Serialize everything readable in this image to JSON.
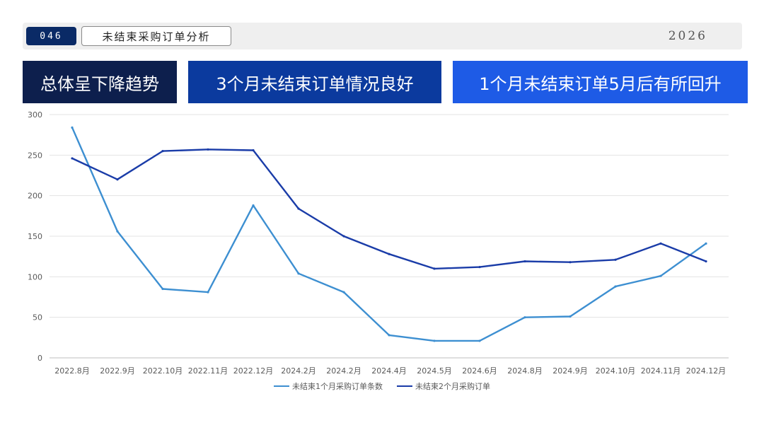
{
  "header": {
    "page_number": "046",
    "title": "未结束采购订单分析",
    "year": "2026"
  },
  "banners": [
    {
      "text": "总体呈下降趋势",
      "color": "#0d1f4d"
    },
    {
      "text": "3个月未结束订单情况良好",
      "color": "#0b3a9e"
    },
    {
      "text": "1个月未结束订单5月后有所回升",
      "color": "#1e5be6"
    }
  ],
  "chart_data": {
    "type": "line",
    "title": "",
    "xlabel": "",
    "ylabel": "",
    "ylim": [
      0,
      300
    ],
    "yticks": [
      0,
      50,
      100,
      150,
      200,
      250,
      300
    ],
    "grid": true,
    "legend_position": "bottom",
    "categories": [
      "2022.8月",
      "2022.9月",
      "2022.10月",
      "2022.11月",
      "2022.12月",
      "2024.2月",
      "2024.2月",
      "2024.4月",
      "2024.5月",
      "2024.6月",
      "2024.8月",
      "2024.9月",
      "2024.10月",
      "2024.11月",
      "2024.12月"
    ],
    "series": [
      {
        "name": "未结束1个月采购订单条数",
        "color": "#3d8fd1",
        "values": [
          284,
          156,
          85,
          81,
          188,
          104,
          81,
          28,
          21,
          21,
          50,
          51,
          88,
          101,
          141
        ]
      },
      {
        "name": "未结束2个月采购订单",
        "color": "#1a3ca8",
        "values": [
          246,
          220,
          255,
          257,
          256,
          184,
          150,
          128,
          110,
          112,
          119,
          118,
          121,
          141,
          119
        ]
      }
    ]
  }
}
